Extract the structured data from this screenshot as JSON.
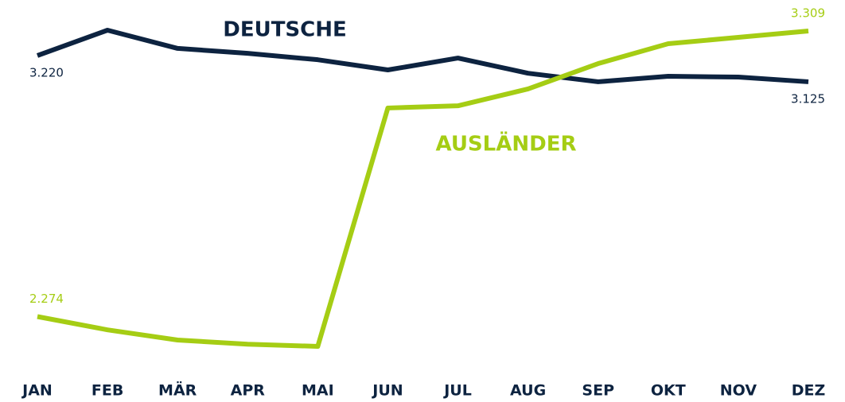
{
  "chart_data": {
    "type": "line",
    "categories": [
      "JAN",
      "FEB",
      "MÄR",
      "APR",
      "MAI",
      "JUN",
      "JUL",
      "AUG",
      "SEP",
      "OKT",
      "NOV",
      "DEZ"
    ],
    "series": [
      {
        "name": "DEUTSCHE",
        "color": "#0d2340",
        "values": [
          3220,
          3312,
          3246,
          3228,
          3205,
          3168,
          3211,
          3156,
          3125,
          3145,
          3142,
          3125
        ],
        "value_labels": [
          "3.220",
          null,
          null,
          null,
          null,
          null,
          null,
          null,
          null,
          null,
          null,
          "3.125"
        ]
      },
      {
        "name": "AUSLÄNDER",
        "color": "#a5cd14",
        "values": [
          2274,
          2226,
          2189,
          2174,
          2166,
          3030,
          3038,
          3099,
          3191,
          3263,
          3286,
          3309
        ],
        "value_labels": [
          "2.274",
          null,
          null,
          null,
          null,
          null,
          null,
          null,
          null,
          null,
          null,
          "3.309"
        ]
      }
    ]
  }
}
